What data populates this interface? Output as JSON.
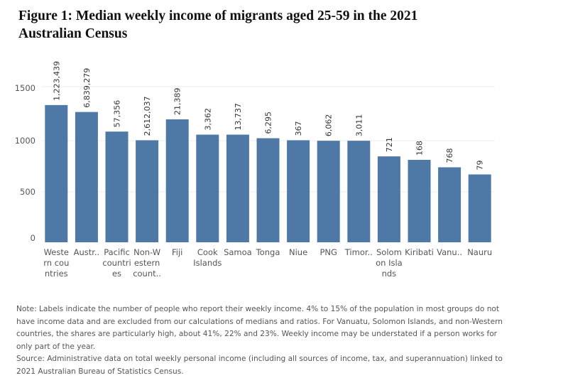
{
  "figure": {
    "title_line1": "Figure 1: Median weekly income of migrants aged 25-59 in the 2021",
    "title_line2": "Australian Census"
  },
  "note": {
    "note_text": "Note: Labels indicate the number of people who report their weekly income. 4% to 15% of the population in most groups do not have income data and are excluded from our calculations of medians and ratios. For Vanuatu, Solomon Islands, and non-Western countries, the shares are particularly high, about 41%, 22% and 23%. Weekly income may be understated if a person works for only part of the year.",
    "source_text": "Source: Administrative data on total weekly personal income (including all sources of income, tax, and superannuation) linked to 2021 Australian Bureau of Statistics Census."
  },
  "colors": {
    "bar": "#4e79a7",
    "grid": "#ececec",
    "text": "#555555"
  },
  "chart_data": {
    "type": "bar",
    "categories": [
      [
        "Weste",
        "rn cou",
        "ntries"
      ],
      [
        "Austr.."
      ],
      [
        "Pacific",
        "countri",
        "es"
      ],
      [
        "Non-W",
        "estern",
        "count.."
      ],
      [
        "Fiji"
      ],
      [
        "Cook",
        "Islands"
      ],
      [
        "Samoa"
      ],
      [
        "Tonga"
      ],
      [
        "Niue"
      ],
      [
        "PNG"
      ],
      [
        "Timor.."
      ],
      [
        "Solom",
        "on Isla",
        "nds"
      ],
      [
        "Kiribati"
      ],
      [
        "Vanu.."
      ],
      [
        "Nauru"
      ]
    ],
    "values": [
      1345,
      1277,
      1085,
      1000,
      1205,
      1055,
      1055,
      1020,
      1000,
      995,
      995,
      842,
      808,
      735,
      665
    ],
    "data_labels": [
      "1,223,439",
      "6,839,279",
      "57,356",
      "2,612,037",
      "21,389",
      "3,362",
      "13,737",
      "6,295",
      "367",
      "6,062",
      "3,011",
      "721",
      "168",
      "768",
      "79"
    ],
    "yticks": [
      "0",
      "500",
      "1000",
      "1500"
    ],
    "ylim": [
      0,
      1650
    ],
    "grid": true
  }
}
